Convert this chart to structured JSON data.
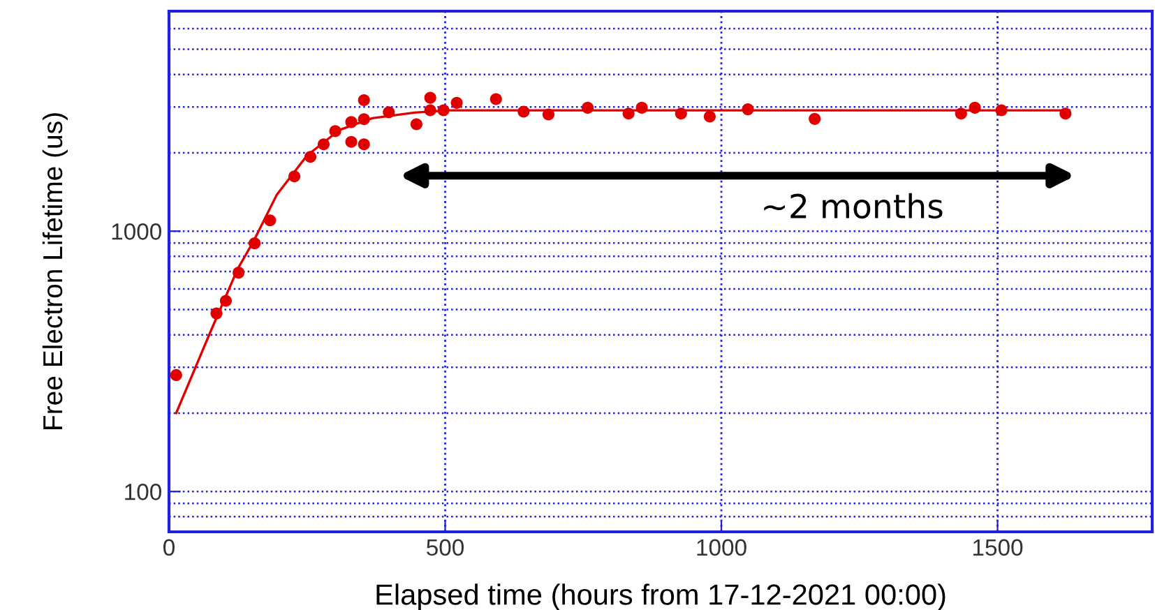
{
  "chart_data": {
    "type": "scatter",
    "xlabel": "Elapsed time (hours from 17-12-2021 00:00)",
    "ylabel": "Free Electron Lifetime (us)",
    "log": "y",
    "xlim": [
      0,
      1780
    ],
    "ylim": [
      70,
      7000
    ],
    "xticks": [
      0,
      500,
      1000,
      1500
    ],
    "yticks": [
      100,
      1000
    ],
    "grid": true,
    "marker": "circle",
    "annotations": [
      "~2 months"
    ],
    "series": [
      {
        "color": "#e00000",
        "x": [
          13,
          86,
          103,
          126,
          155,
          183,
          227,
          256,
          280,
          301,
          330,
          330,
          353,
          353,
          353,
          398,
          448,
          473,
          473,
          497,
          521,
          592,
          642,
          687,
          758,
          832,
          856,
          927,
          979,
          1048,
          1169,
          1434,
          1459,
          1507,
          1623
        ],
        "values": [
          280,
          483,
          540,
          693,
          898,
          1100,
          1623,
          1930,
          2157,
          2422,
          2625,
          2203,
          2692,
          2157,
          3187,
          2863,
          2575,
          3253,
          2913,
          2913,
          3111,
          3215,
          2877,
          2807,
          2979,
          2830,
          2979,
          2830,
          2756,
          2939,
          2700,
          2830,
          2979,
          2913,
          2830
        ]
      },
      {
        "type": "line",
        "color": "#e00000",
        "marker": "none",
        "line_style": "solid",
        "x": [
          13,
          73,
          124,
          153,
          195,
          250,
          309,
          368,
          444,
          506,
          1630
        ],
        "values": [
          200,
          401,
          714,
          914,
          1378,
          1954,
          2450,
          2716,
          2852,
          2910,
          2910
        ]
      }
    ]
  }
}
